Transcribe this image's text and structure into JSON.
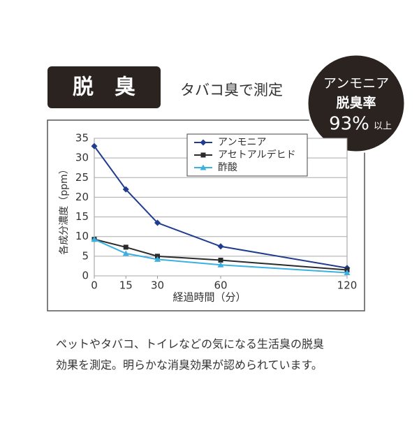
{
  "header": {
    "badge": "脱　臭",
    "subtitle": "タバコ臭で測定"
  },
  "callout": {
    "line1": "アンモニア",
    "line2": "脱臭率",
    "figure": "93%",
    "suffix": "以上"
  },
  "chart_data": {
    "type": "line",
    "ylabel": "各成分濃度（ppm）",
    "xlabel": "経過時間（分）",
    "x": [
      0,
      15,
      30,
      60,
      120
    ],
    "xlim": [
      0,
      120
    ],
    "xticks": [
      0,
      15,
      30,
      60,
      120
    ],
    "ylim": [
      0,
      35
    ],
    "yticks": [
      0,
      5,
      10,
      15,
      20,
      25,
      30,
      35
    ],
    "grid": true,
    "series": [
      {
        "name": "アンモニア",
        "color": "#203c8f",
        "marker": "diamond",
        "values": [
          33,
          22,
          13.5,
          7.5,
          2
        ]
      },
      {
        "name": "アセトアルデヒド",
        "color": "#2b2b2b",
        "marker": "square",
        "values": [
          9.3,
          7.3,
          5,
          4,
          1.5
        ]
      },
      {
        "name": "酢酸",
        "color": "#3bb0e3",
        "marker": "triangle",
        "values": [
          9.3,
          5.7,
          4.2,
          2.8,
          0.8
        ]
      }
    ]
  },
  "description": [
    "ペットやタバコ、トイレなどの気になる生活臭の脱臭",
    "効果を測定。明らかな消臭効果が認められています。"
  ]
}
